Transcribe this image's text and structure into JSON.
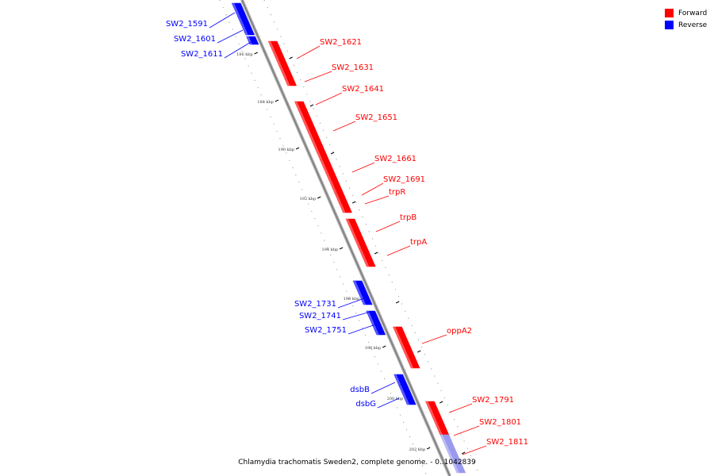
{
  "colors": {
    "forward": "#ff0000",
    "reverse": "#0000ff",
    "backbone": "#999999",
    "faded_reverse": "#9999ee"
  },
  "legend": [
    {
      "label": "Forward",
      "color": "#ff0000"
    },
    {
      "label": "Reverse",
      "color": "#0000ff"
    }
  ],
  "caption": "Chlamydia trachomatis Sweden2, complete genome. - 0..1042839",
  "ticks": [
    "186 kbp",
    "188 kbp",
    "190 kbp",
    "192 kbp",
    "194 kbp",
    "196 kbp",
    "198 kbp",
    "200 kbp",
    "202 kbp"
  ],
  "genes": [
    {
      "name": "SW2_1591",
      "strand": "reverse"
    },
    {
      "name": "SW2_1601",
      "strand": "reverse"
    },
    {
      "name": "SW2_1611",
      "strand": "reverse"
    },
    {
      "name": "SW2_1621",
      "strand": "forward"
    },
    {
      "name": "SW2_1631",
      "strand": "forward"
    },
    {
      "name": "SW2_1641",
      "strand": "forward"
    },
    {
      "name": "SW2_1651",
      "strand": "forward"
    },
    {
      "name": "SW2_1661",
      "strand": "forward"
    },
    {
      "name": "SW2_1691",
      "strand": "forward"
    },
    {
      "name": "trpR",
      "strand": "forward"
    },
    {
      "name": "trpB",
      "strand": "forward"
    },
    {
      "name": "trpA",
      "strand": "forward"
    },
    {
      "name": "SW2_1731",
      "strand": "reverse"
    },
    {
      "name": "SW2_1741",
      "strand": "reverse"
    },
    {
      "name": "SW2_1751",
      "strand": "reverse"
    },
    {
      "name": "oppA2",
      "strand": "forward"
    },
    {
      "name": "dsbB",
      "strand": "reverse"
    },
    {
      "name": "dsbG",
      "strand": "reverse"
    },
    {
      "name": "SW2_1791",
      "strand": "forward"
    },
    {
      "name": "SW2_1801",
      "strand": "forward"
    },
    {
      "name": "SW2_1811",
      "strand": "forward"
    }
  ]
}
